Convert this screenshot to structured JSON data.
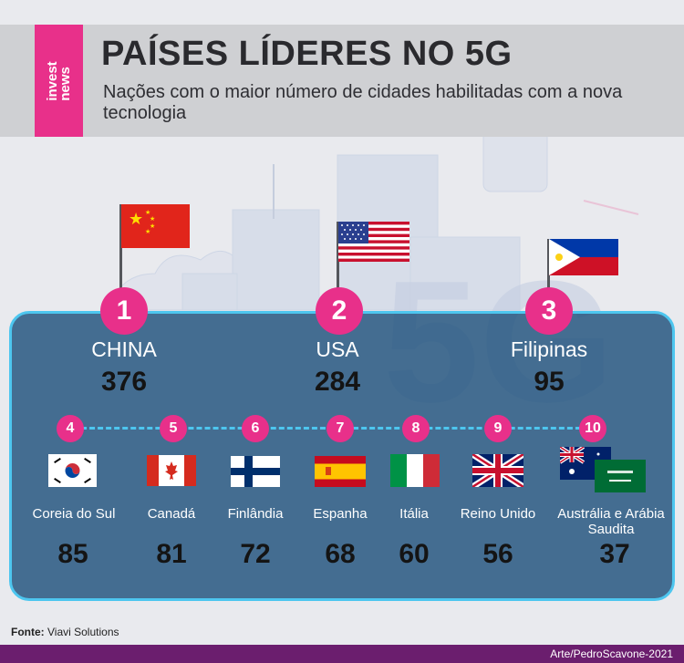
{
  "brand": {
    "logo_text": "invest\nnews",
    "accent": "#e8308a"
  },
  "header": {
    "title": "PAÍSES LÍDERES NO 5G",
    "subtitle": "Nações com o maior número de cidades habilitadas com a nova tecnologia"
  },
  "top3": [
    {
      "rank": "1",
      "name": "CHINA",
      "value": "376",
      "flag": "china-flag"
    },
    {
      "rank": "2",
      "name": "USA",
      "value": "284",
      "flag": "usa-flag"
    },
    {
      "rank": "3",
      "name": "Filipinas",
      "value": "95",
      "flag": "philippines-flag"
    }
  ],
  "others": [
    {
      "rank": "4",
      "name": "Coreia do Sul",
      "value": "85",
      "flag": "south-korea-flag"
    },
    {
      "rank": "5",
      "name": "Canadá",
      "value": "81",
      "flag": "canada-flag"
    },
    {
      "rank": "6",
      "name": "Finlândia",
      "value": "72",
      "flag": "finland-flag"
    },
    {
      "rank": "7",
      "name": "Espanha",
      "value": "68",
      "flag": "spain-flag"
    },
    {
      "rank": "8",
      "name": "Itália",
      "value": "60",
      "flag": "italy-flag"
    },
    {
      "rank": "9",
      "name": "Reino Unido",
      "value": "56",
      "flag": "uk-flag"
    },
    {
      "rank": "10",
      "name": "Austrália e Arábia Saudita",
      "value": "37",
      "flag": "australia-saudi-flags"
    }
  ],
  "footer": {
    "source_label": "Fonte:",
    "source_value": "Viavi Solutions",
    "credit": "Arte/PedroScavone-2021"
  }
}
